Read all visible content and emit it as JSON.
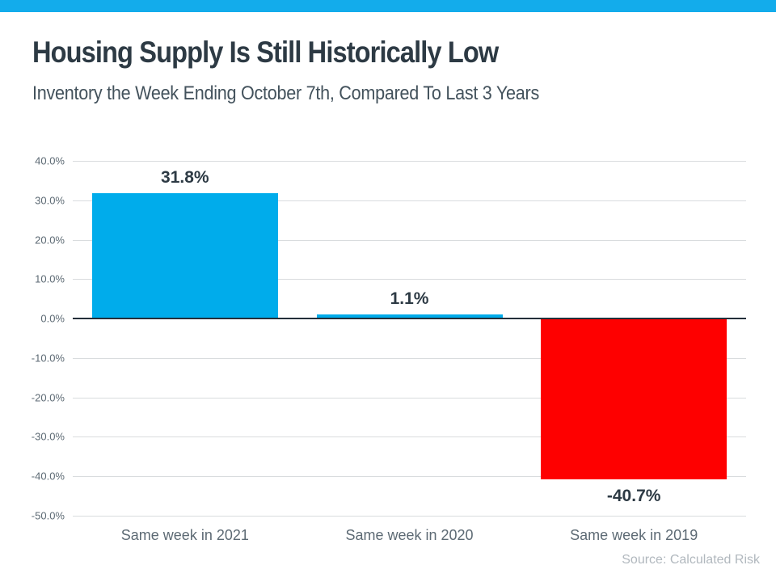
{
  "page": {
    "title": "Housing Supply Is Still Historically Low",
    "subtitle": "Inventory the Week Ending October 7th, Compared To Last 3 Years",
    "source": "Source: Calculated Risk",
    "accent_bar_color": "#13aceb"
  },
  "chart_data": {
    "type": "bar",
    "categories": [
      "Same week in 2021",
      "Same week in 2020",
      "Same week in 2019"
    ],
    "values": [
      31.8,
      1.1,
      -40.7
    ],
    "value_labels": [
      "31.8%",
      "1.1%",
      "-40.7%"
    ],
    "bar_colors": [
      "#00aceb",
      "#00aceb",
      "#fe0000"
    ],
    "title": "",
    "xlabel": "",
    "ylabel": "",
    "ylim": [
      -50,
      40
    ],
    "yticks": [
      {
        "value": 40,
        "label": "40.0%"
      },
      {
        "value": 30,
        "label": "30.0%"
      },
      {
        "value": 20,
        "label": "20.0%"
      },
      {
        "value": 10,
        "label": "10.0%"
      },
      {
        "value": 0,
        "label": "0.0%"
      },
      {
        "value": -10,
        "label": "-10.0%"
      },
      {
        "value": -20,
        "label": "-20.0%"
      },
      {
        "value": -30,
        "label": "-30.0%"
      },
      {
        "value": -40,
        "label": "-40.0%"
      },
      {
        "value": -50,
        "label": "-50.0%"
      }
    ],
    "grid": true,
    "legend": false,
    "gridline_color": "#d9dcde",
    "zero_line_color": "#232f3a",
    "value_label_color": "#2d3a44",
    "tick_label_color": "#5d6a74"
  }
}
